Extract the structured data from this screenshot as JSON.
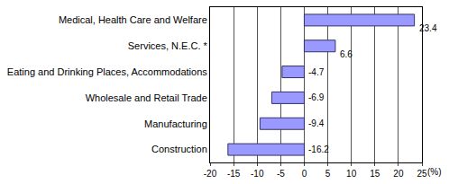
{
  "chart_data": {
    "type": "bar",
    "orientation": "horizontal",
    "categories": [
      "Medical, Health Care and Welfare",
      "Services, N.E.C. *",
      "Eating and Drinking Places, Accommodations",
      "Wholesale and Retail Trade",
      "Manufacturing",
      "Construction"
    ],
    "values": [
      23.4,
      6.6,
      -4.7,
      -6.9,
      -9.4,
      -16.2
    ],
    "color": "#9999ff",
    "xlabel": "(%)",
    "xlim": [
      -20,
      25
    ],
    "xticks": [
      -20,
      -15,
      -10,
      -5,
      0,
      5,
      10,
      15,
      20,
      25
    ],
    "grid": true,
    "data_labels": true
  }
}
